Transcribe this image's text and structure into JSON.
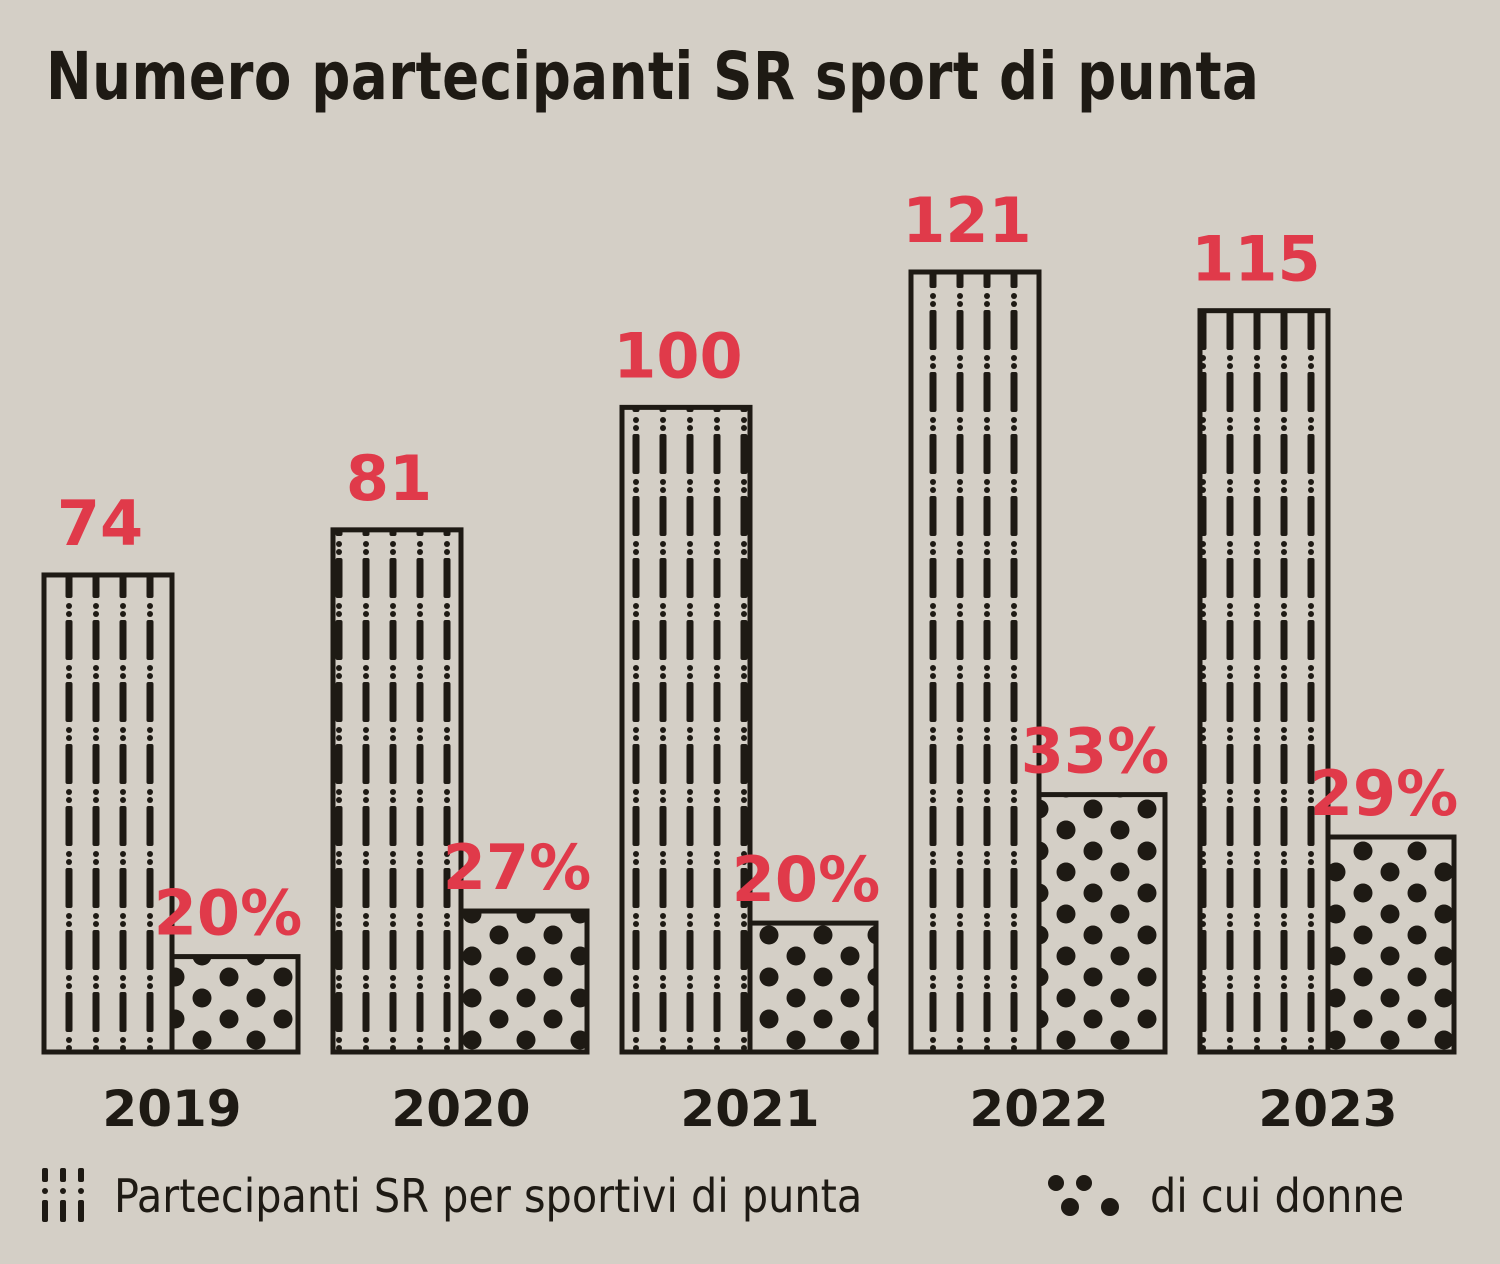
{
  "title": "Numero partecipanti SR sport di punta",
  "colors": {
    "background": "#d4cfc6",
    "ink": "#1e1a14",
    "accent": "#e03a4a"
  },
  "chart_data": {
    "type": "bar",
    "title": "Numero partecipanti SR sport di punta",
    "categories": [
      "2019",
      "2020",
      "2021",
      "2022",
      "2023"
    ],
    "series": [
      {
        "name": "Partecipanti SR per sportivi di punta",
        "values": [
          74,
          81,
          100,
          121,
          115
        ],
        "labels": [
          "74",
          "81",
          "100",
          "121",
          "115"
        ],
        "pattern": "dashed-vertical-lines"
      },
      {
        "name": "di cui donne",
        "values": [
          20,
          27,
          20,
          33,
          29
        ],
        "unit": "%",
        "labels": [
          "20%",
          "27%",
          "20%",
          "33%",
          "29%"
        ],
        "pattern": "dots"
      }
    ],
    "legend_position": "bottom",
    "grid": false,
    "yaxis_visible": false,
    "ylim": [
      0,
      121
    ]
  },
  "legend": [
    {
      "label": "Partecipanti SR per sportivi di punta",
      "icon": "dashed-lines-icon"
    },
    {
      "label": "di cui donne",
      "icon": "dots-icon"
    }
  ]
}
